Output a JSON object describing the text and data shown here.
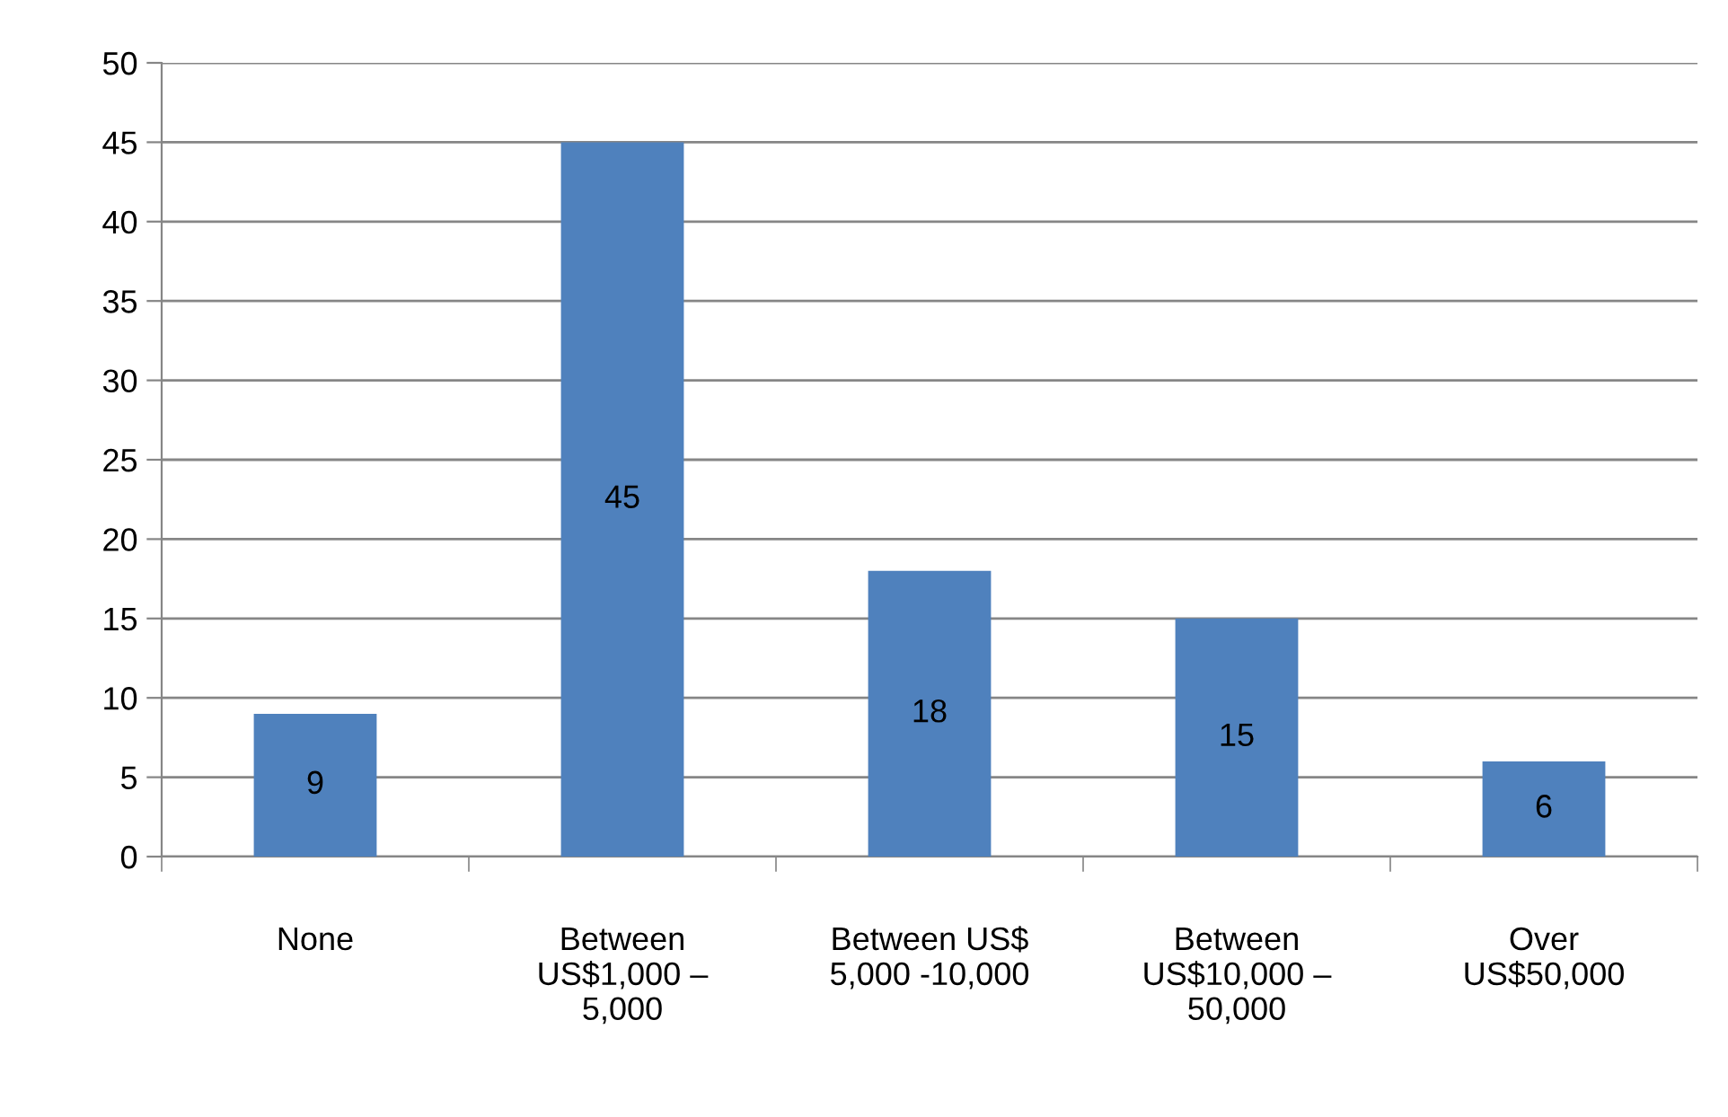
{
  "chart_data": {
    "type": "bar",
    "categories": [
      "None",
      "Between\nUS$1,000 –\n5,000",
      "Between US$\n5,000 -10,000",
      "Between\nUS$10,000 –\n50,000",
      "Over\nUS$50,000"
    ],
    "values": [
      9,
      45,
      18,
      15,
      6
    ],
    "color": "#4f81bd",
    "ylim": [
      0,
      50
    ],
    "yticks": [
      0,
      5,
      10,
      15,
      20,
      25,
      30,
      35,
      40,
      45,
      50
    ],
    "grid": "y",
    "data_labels": true,
    "legend": false
  }
}
